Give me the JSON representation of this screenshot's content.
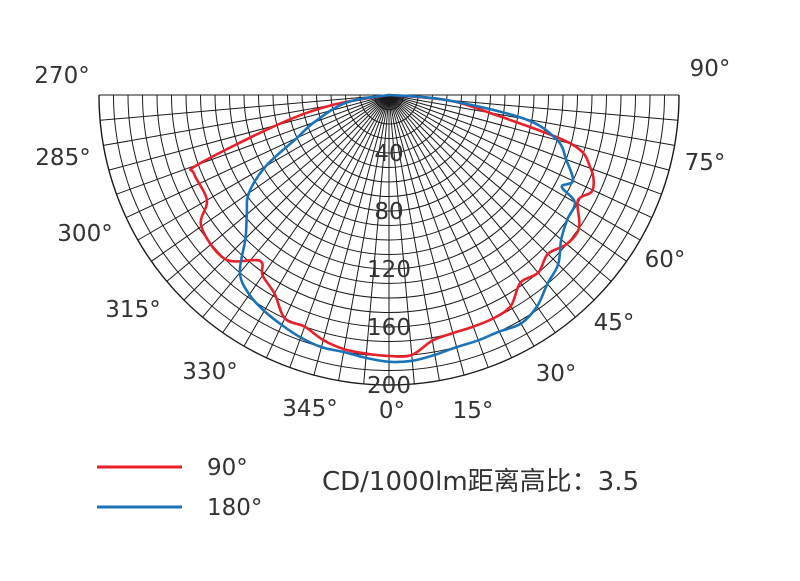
{
  "chart_data": {
    "type": "polar",
    "title": "",
    "note": "CD/1000lm距离高比：3.5",
    "radial_ticks": [
      "40",
      "80",
      "120",
      "160",
      "200"
    ],
    "radial_range": [
      0,
      200
    ],
    "angle_labels": [
      "0°",
      "15°",
      "30°",
      "45°",
      "60°",
      "75°",
      "90°",
      "345°",
      "330°",
      "315°",
      "300°",
      "285°",
      "270°"
    ],
    "grid": true,
    "legend_position": "bottom-left",
    "series": [
      {
        "name": "90°",
        "color": "#e8202a",
        "angles": [
          -90,
          -80,
          -75,
          -70,
          -68,
          -60,
          -55,
          -45,
          -38,
          -35,
          -30,
          -25,
          -20,
          -15,
          -10,
          -5,
          0,
          5,
          10,
          15,
          20,
          25,
          30,
          35,
          40,
          45,
          50,
          55,
          60,
          62,
          65,
          70,
          75,
          80,
          85,
          90
        ],
        "values": [
          0,
          40,
          80,
          140,
          145,
          145,
          158,
          160,
          145,
          152,
          158,
          170,
          170,
          175,
          178,
          179,
          180,
          180,
          172,
          170,
          170,
          170,
          168,
          158,
          160,
          155,
          160,
          160,
          150,
          150,
          155,
          148,
          130,
          70,
          40,
          0
        ]
      },
      {
        "name": "180°",
        "color": "#1a73b8",
        "angles": [
          -90,
          -80,
          -70,
          -65,
          -60,
          -55,
          -50,
          -45,
          -40,
          -35,
          -30,
          -25,
          -20,
          -15,
          -10,
          -5,
          0,
          5,
          10,
          15,
          20,
          25,
          30,
          35,
          40,
          45,
          50,
          55,
          60,
          62,
          65,
          70,
          75,
          80,
          85,
          90
        ],
        "values": [
          0,
          30,
          55,
          70,
          98,
          118,
          128,
          140,
          160,
          168,
          172,
          175,
          178,
          180,
          180,
          182,
          184,
          184,
          182,
          180,
          180,
          180,
          182,
          178,
          170,
          165,
          155,
          150,
          148,
          135,
          140,
          130,
          120,
          95,
          40,
          0
        ]
      }
    ]
  }
}
